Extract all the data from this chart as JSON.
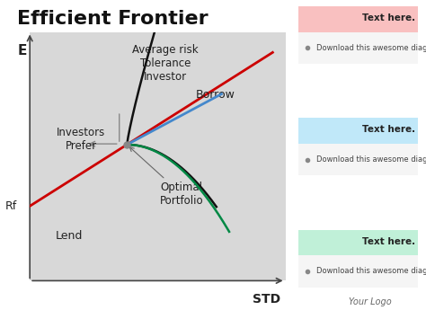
{
  "title": "Efficient Frontier",
  "background_color": "#e8e8e8",
  "figure_bg": "#ffffff",
  "chart_area_bg": "#d8d8d8",
  "ylabel": "E",
  "xlabel": "STD",
  "rf_label": "Rf",
  "lend_label": "Lend",
  "borrow_label": "Borrow",
  "optimal_label": "Optimal\nPortfolio",
  "avg_risk_label": "Average risk\nTolerance\nInvestor",
  "investors_prefer_label": "Investors\nPrefer",
  "your_logo": "Your Logo",
  "sidebar_labels": [
    "Text here.",
    "Text here.",
    "Text here."
  ],
  "sidebar_sublabels": [
    "Download this awesome diagram.",
    "Download this awesome diagram.",
    "Download this awesome diagram."
  ],
  "sidebar_colors": [
    "#f9c0c0",
    "#c0e8f9",
    "#c0f0d8"
  ],
  "sidebar_dot_color": "#888888",
  "red_line_color": "#cc0000",
  "blue_line_color": "#4488cc",
  "black_curve_color": "#111111",
  "green_curve_color": "#008844",
  "axis_color": "#444444",
  "title_fontsize": 16,
  "label_fontsize": 9
}
